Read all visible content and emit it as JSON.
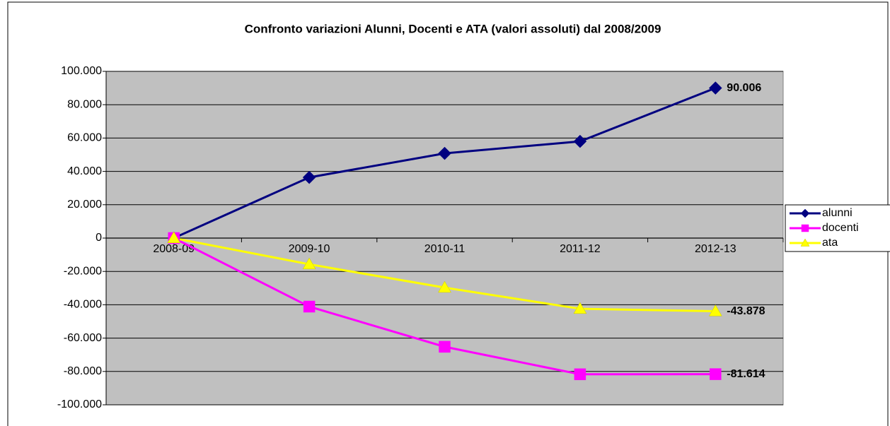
{
  "chart_data": {
    "type": "line",
    "title": "Confronto variazioni Alunni, Docenti e ATA (valori assoluti) dal 2008/2009",
    "categories": [
      "2008-09",
      "2009-10",
      "2010-11",
      "2011-12",
      "2012-13"
    ],
    "series": [
      {
        "name": "alunni",
        "color": "#000080",
        "marker": "diamond",
        "label_color": "#000000",
        "values": [
          0,
          36400,
          50800,
          58000,
          90006
        ],
        "value_labels": [
          null,
          null,
          null,
          null,
          "90.006"
        ]
      },
      {
        "name": "docenti",
        "color": "#ff00ff",
        "marker": "square",
        "label_color": "#ff0000",
        "values": [
          0,
          -41100,
          -65200,
          -81700,
          -81614
        ],
        "value_labels": [
          null,
          null,
          null,
          null,
          "-81.614"
        ]
      },
      {
        "name": "ata",
        "color": "#ffff00",
        "marker": "triangle",
        "label_color": "#ff0000",
        "values": [
          0,
          -15700,
          -29700,
          -42400,
          -43878
        ],
        "value_labels": [
          null,
          null,
          null,
          null,
          "-43.878"
        ]
      }
    ],
    "ylim": [
      -100000,
      100000
    ],
    "yticks": [
      {
        "value": -100000,
        "label": "-100.000"
      },
      {
        "value": -80000,
        "label": "-80.000"
      },
      {
        "value": -60000,
        "label": "-60.000"
      },
      {
        "value": -40000,
        "label": "-40.000"
      },
      {
        "value": -20000,
        "label": "-20.000"
      },
      0,
      {
        "value": 20000,
        "label": "20.000"
      },
      {
        "value": 40000,
        "label": "40.000"
      },
      {
        "value": 60000,
        "label": "60.000"
      },
      {
        "value": 80000,
        "label": "80.000"
      },
      {
        "value": 100000,
        "label": "100.000"
      }
    ],
    "grid": true,
    "plot_background": "#c0c0c0",
    "legend": "right"
  }
}
